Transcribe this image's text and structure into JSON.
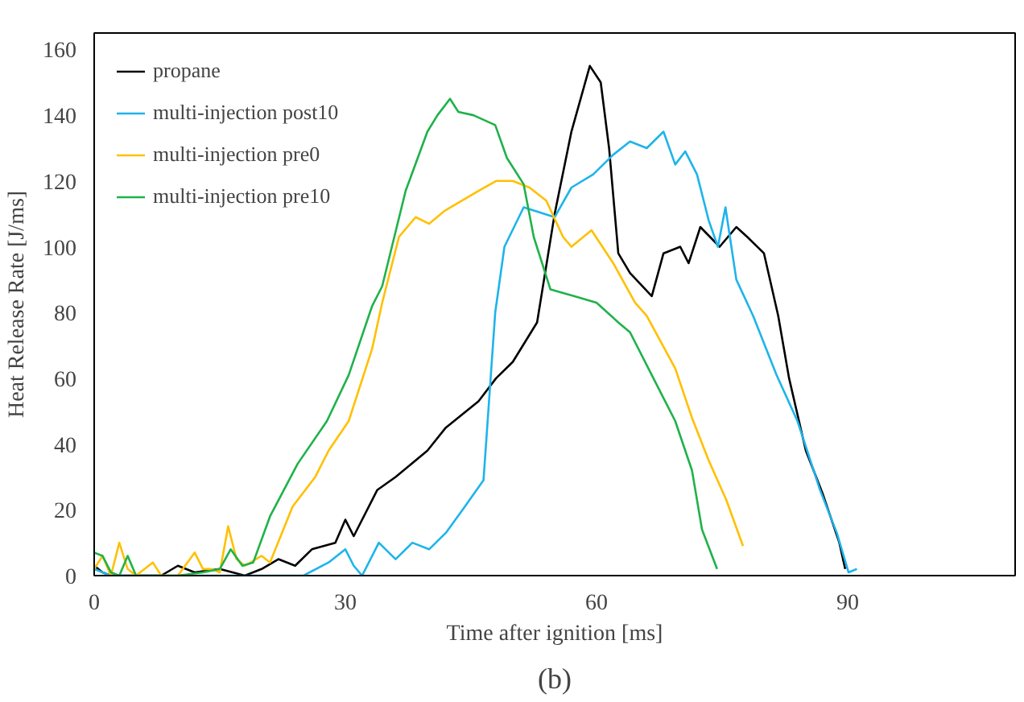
{
  "chart_data": {
    "type": "line",
    "xlabel": "Time after ignition [ms]",
    "ylabel": "Heat Release Rate [J/ms]",
    "annotations": [
      "(b)"
    ],
    "xlim": [
      0,
      110
    ],
    "ylim": [
      0,
      165
    ],
    "xticks": [
      0,
      30,
      60,
      90
    ],
    "yticks": [
      0,
      20,
      40,
      60,
      80,
      100,
      120,
      140,
      160
    ],
    "grid": false,
    "legend": "top left",
    "marker": "none",
    "line_style": "solid",
    "series": [
      {
        "name": "propane",
        "color": "#000000",
        "x": [
          0,
          1,
          2,
          4,
          8,
          10,
          12,
          15,
          18,
          20,
          22,
          24,
          26,
          28.8,
          30,
          31,
          33.8,
          36,
          39.8,
          42,
          45.9,
          48,
          50,
          52.9,
          55,
          57,
          59.2,
          60.5,
          61.5,
          62.6,
          64,
          66.6,
          68,
          70,
          71,
          72.4,
          74.7,
          76.7,
          78,
          80,
          81.7,
          83,
          85,
          87,
          89,
          89.7
        ],
        "values": [
          3,
          1,
          0,
          0,
          0,
          3,
          1,
          2,
          0,
          2,
          5,
          3,
          8,
          10,
          17,
          12,
          26,
          30,
          38,
          45,
          53,
          60,
          65,
          77,
          110,
          135,
          155,
          150,
          130,
          98,
          92,
          85,
          98,
          100,
          95,
          106,
          100,
          106,
          103,
          98,
          79,
          60,
          38,
          25,
          10,
          2
        ]
      },
      {
        "name": "multi-injection post10",
        "color": "#1eb4ea",
        "x": [
          0,
          1,
          2,
          5,
          10,
          15,
          20,
          25,
          28,
          30,
          31,
          32,
          34,
          36,
          38,
          40,
          42,
          44,
          46.5,
          47.9,
          49,
          51.3,
          55,
          57,
          59.6,
          62,
          64,
          66,
          68,
          69.4,
          70.6,
          72,
          73.4,
          74.5,
          75.4,
          76.7,
          78.7,
          81.5,
          84,
          86.7,
          88.7,
          90.1,
          91.1
        ],
        "values": [
          2,
          1,
          0,
          0,
          0,
          0,
          0,
          0,
          4,
          8,
          3,
          0,
          10,
          5,
          10,
          8,
          13,
          20,
          29,
          80,
          100,
          112,
          109,
          118,
          122,
          128,
          132,
          130,
          135,
          125,
          129,
          122,
          108,
          100,
          112,
          90,
          79,
          61,
          47,
          26,
          13,
          1,
          2
        ]
      },
      {
        "name": "multi-injection pre0",
        "color": "#ffc000",
        "x": [
          0,
          1,
          2,
          3,
          4,
          5,
          7,
          8,
          10,
          12,
          13,
          14,
          15,
          16,
          17,
          18,
          20,
          21,
          23.7,
          26.4,
          28,
          30.4,
          33.2,
          34.4,
          36.4,
          38.4,
          40,
          41.9,
          43.9,
          45.9,
          48,
          50,
          52,
          54,
          56,
          57,
          59.4,
          62,
          64.6,
          66,
          69.4,
          71.4,
          73.4,
          75.5,
          77.5
        ],
        "values": [
          2,
          6,
          0,
          10,
          2,
          0,
          4,
          0,
          0,
          7,
          2,
          2,
          1,
          15,
          5,
          3,
          6,
          4,
          21,
          30,
          38,
          47,
          69,
          83,
          103,
          109,
          107,
          111,
          114,
          117,
          120,
          120,
          118,
          114,
          103,
          100,
          105,
          95,
          83,
          79,
          63,
          48,
          35,
          23,
          9
        ]
      },
      {
        "name": "multi-injection pre10",
        "color": "#1fb24a",
        "x": [
          0,
          1,
          2,
          3,
          4,
          5,
          7,
          10,
          13,
          15,
          16.3,
          17.7,
          19,
          21,
          24.3,
          27.8,
          30.4,
          33.2,
          34.4,
          37.2,
          39.8,
          41,
          42.5,
          43.5,
          45.3,
          47.9,
          49.3,
          51.3,
          52.5,
          54.5,
          57.3,
          60,
          62.6,
          64,
          66.6,
          69.4,
          71.4,
          72.6,
          74.4
        ],
        "values": [
          7,
          6,
          1,
          0,
          6,
          0,
          0,
          0,
          1,
          2,
          8,
          3,
          4,
          18,
          34,
          47,
          61,
          82,
          88,
          117,
          135,
          140,
          145,
          141,
          140,
          137,
          127,
          119,
          103,
          87,
          85,
          83,
          77,
          74,
          61,
          47,
          32,
          14,
          2
        ]
      }
    ]
  }
}
